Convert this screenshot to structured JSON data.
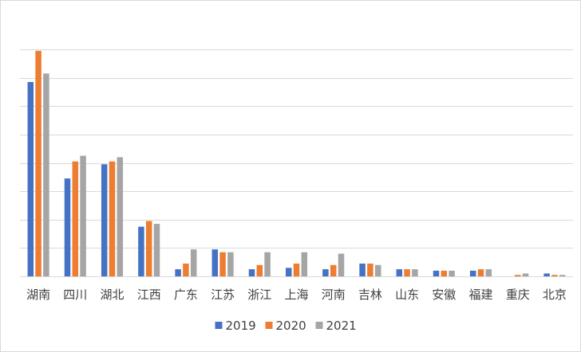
{
  "chart_data": {
    "type": "bar",
    "categories": [
      "湖南",
      "四川",
      "湖北",
      "江西",
      "广东",
      "江苏",
      "浙江",
      "上海",
      "河南",
      "吉林",
      "山东",
      "安徽",
      "福建",
      "重庆",
      "北京"
    ],
    "series": [
      {
        "name": "2019",
        "color": "#4472c4",
        "values": [
          68.5,
          34.5,
          39.5,
          17.5,
          2.5,
          9.5,
          2.5,
          3.0,
          2.5,
          4.5,
          2.5,
          2.0,
          2.0,
          0.0,
          1.0
        ]
      },
      {
        "name": "2020",
        "color": "#ed7d31",
        "values": [
          79.5,
          40.5,
          40.5,
          19.5,
          4.5,
          8.5,
          4.0,
          4.5,
          4.0,
          4.5,
          2.5,
          2.0,
          2.5,
          0.5,
          0.5
        ]
      },
      {
        "name": "2021",
        "color": "#a5a5a5",
        "values": [
          71.5,
          42.5,
          42.0,
          18.5,
          9.5,
          8.5,
          8.5,
          8.5,
          8.0,
          4.0,
          2.5,
          2.0,
          2.5,
          1.0,
          0.5
        ]
      }
    ],
    "ylim": [
      0,
      80
    ],
    "gridlines": [
      0,
      10,
      20,
      30,
      40,
      50,
      60,
      70,
      80
    ],
    "grid": true,
    "legend_position": "bottom"
  }
}
